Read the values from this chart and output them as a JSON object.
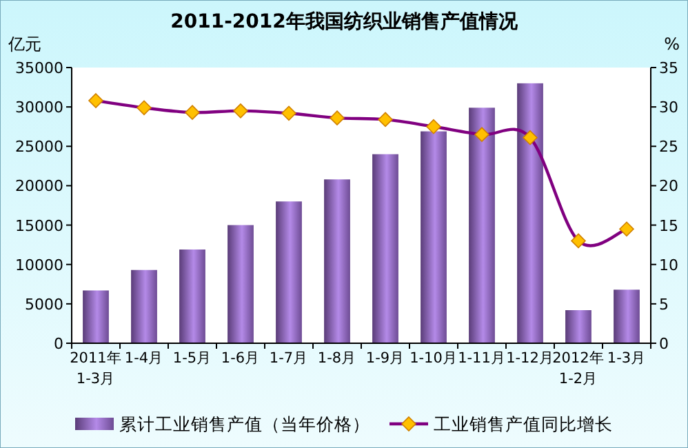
{
  "chart_data": {
    "type": "bar",
    "title": "2011-2012年我国纺织业销售产值情况",
    "ylabel": "亿元",
    "y2label": "%",
    "categories": [
      "2011年\n1-3月",
      "1-4月",
      "1-5月",
      "1-6月",
      "1-7月",
      "1-8月",
      "1-9月",
      "1-10月",
      "1-11月",
      "1-12月",
      "2012年\n1-2月",
      "1-3月"
    ],
    "series": [
      {
        "name": "累计工业销售产值（当年价格）",
        "color": "#b48ae8",
        "values": [
          6700,
          9300,
          11900,
          15000,
          18000,
          20800,
          24000,
          26900,
          29900,
          33000,
          4200,
          6800
        ]
      },
      {
        "name": "工业销售产值同比增长",
        "type": "line",
        "axis": "y2",
        "color": "#800080",
        "marker": "diamond",
        "values": [
          30.8,
          29.9,
          29.3,
          29.5,
          29.2,
          28.6,
          28.4,
          27.5,
          26.5,
          26.1,
          13.0,
          14.5
        ]
      }
    ],
    "ylim": [
      0,
      35000
    ],
    "yticks": [
      0,
      5000,
      10000,
      15000,
      20000,
      25000,
      30000,
      35000
    ],
    "y2lim": [
      0,
      35
    ],
    "y2ticks": [
      0,
      5,
      10,
      15,
      20,
      25,
      30,
      35
    ],
    "grid": false,
    "legend": "bottom"
  }
}
